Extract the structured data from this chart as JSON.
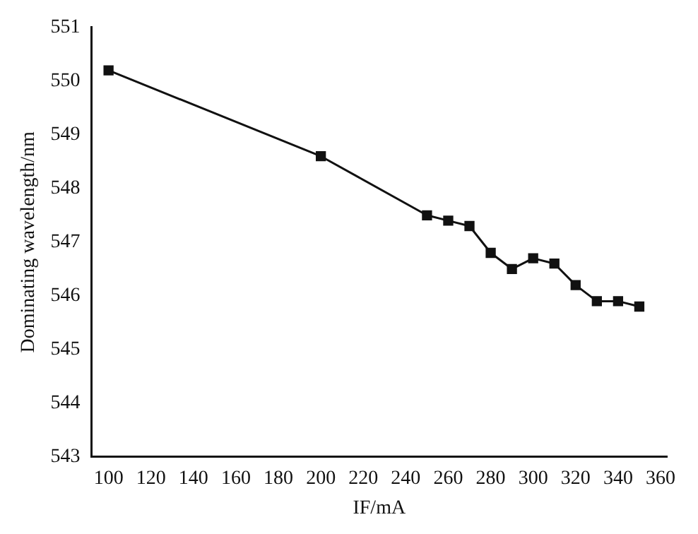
{
  "chart_data": {
    "type": "line",
    "xlabel": "IF/mA",
    "ylabel": "Dominating wavelength/nm",
    "x": [
      100,
      200,
      250,
      260,
      270,
      280,
      290,
      300,
      310,
      320,
      330,
      340,
      350
    ],
    "series": [
      {
        "color": "#111111",
        "values": [
          550.2,
          548.6,
          547.5,
          547.4,
          547.3,
          546.8,
          546.5,
          546.7,
          546.6,
          546.2,
          545.9,
          545.9,
          545.8
        ]
      }
    ],
    "xlim": [
      92,
      363
    ],
    "xticks": [
      100,
      120,
      140,
      160,
      180,
      200,
      220,
      240,
      260,
      280,
      300,
      320,
      340,
      360
    ],
    "ylim": [
      543,
      551
    ],
    "yticks": [
      543,
      544,
      545,
      546,
      547,
      548,
      549,
      550,
      551
    ],
    "grid": false,
    "legend": false,
    "marker": "square",
    "line_style": "solid"
  }
}
